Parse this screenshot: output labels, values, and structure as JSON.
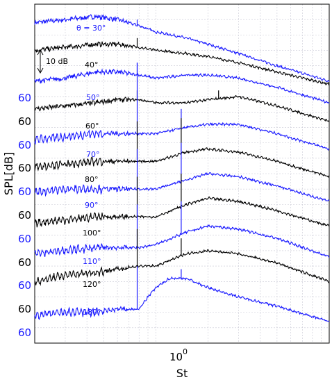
{
  "chart_data": {
    "type": "line",
    "xlabel": "St",
    "ylabel": "SPL[dB]",
    "x_scale": "log",
    "x_tick_labels": [
      {
        "base": "10",
        "exp": "0",
        "value": 1
      }
    ],
    "xlim": [
      0.2,
      10
    ],
    "y_tick_label": "60",
    "scale_annotation": "10 dB",
    "series": [
      {
        "name": "θ = 30°",
        "color": "#1a1aff",
        "x": [
          0.2,
          0.3,
          0.45,
          0.6,
          0.8,
          1.0,
          1.5,
          2.0,
          3.0,
          5.0,
          10.0
        ],
        "y": [
          94,
          95,
          96,
          95,
          93,
          91,
          89,
          87,
          84,
          80,
          75
        ],
        "peaks": [
          {
            "x": 0.78,
            "y": 95
          }
        ]
      },
      {
        "name": "40°",
        "color": "#000000",
        "x": [
          0.2,
          0.3,
          0.45,
          0.6,
          0.8,
          1.0,
          1.5,
          2.0,
          3.0,
          5.0,
          10.0
        ],
        "y": [
          85,
          86,
          87,
          87,
          86,
          85,
          84,
          83,
          81,
          78,
          74
        ],
        "peaks": [
          {
            "x": 0.78,
            "y": 89
          }
        ]
      },
      {
        "name": "50°",
        "color": "#1a1aff",
        "x": [
          0.2,
          0.3,
          0.45,
          0.6,
          0.8,
          1.0,
          1.5,
          2.0,
          3.0,
          5.0,
          10.0
        ],
        "y": [
          75,
          76,
          78,
          78,
          77,
          76,
          77,
          77,
          76,
          73,
          68
        ],
        "peaks": [
          {
            "x": 0.78,
            "y": 81
          }
        ]
      },
      {
        "name": "60°",
        "color": "#000000",
        "x": [
          0.2,
          0.3,
          0.45,
          0.6,
          0.8,
          1.0,
          1.5,
          2.0,
          3.0,
          5.0,
          10.0
        ],
        "y": [
          66,
          67,
          68,
          69,
          69,
          68,
          68,
          69,
          70,
          67,
          62
        ],
        "peaks": [
          {
            "x": 0.78,
            "y": 72
          },
          {
            "x": 2.3,
            "y": 72
          }
        ]
      },
      {
        "name": "70°",
        "color": "#1a1aff",
        "x": [
          0.2,
          0.3,
          0.45,
          0.6,
          0.8,
          1.0,
          1.5,
          2.0,
          3.0,
          5.0,
          10.0
        ],
        "y": [
          56,
          57,
          58,
          58,
          58,
          58,
          60,
          61,
          61,
          58,
          53
        ],
        "peaks": [
          {
            "x": 0.78,
            "y": 81
          },
          {
            "x": 1.4,
            "y": 66
          }
        ]
      },
      {
        "name": "80°",
        "color": "#000000",
        "x": [
          0.2,
          0.3,
          0.45,
          0.6,
          0.8,
          1.0,
          1.5,
          2.0,
          3.0,
          5.0,
          10.0
        ],
        "y": [
          47,
          48,
          49,
          49,
          49,
          49,
          52,
          53,
          52,
          49,
          44
        ],
        "peaks": [
          {
            "x": 0.78,
            "y": 62
          },
          {
            "x": 1.4,
            "y": 63
          }
        ]
      },
      {
        "name": "90°",
        "color": "#1a1aff",
        "x": [
          0.2,
          0.3,
          0.45,
          0.6,
          0.8,
          1.0,
          1.5,
          2.0,
          3.0,
          5.0,
          10.0
        ],
        "y": [
          39,
          40,
          40,
          40,
          40,
          40,
          43,
          45,
          44,
          41,
          36
        ],
        "peaks": [
          {
            "x": 0.78,
            "y": 53
          },
          {
            "x": 1.4,
            "y": 55
          }
        ]
      },
      {
        "name": "100°",
        "color": "#000000",
        "x": [
          0.2,
          0.3,
          0.45,
          0.6,
          0.8,
          1.0,
          1.5,
          2.0,
          3.0,
          5.0,
          10.0
        ],
        "y": [
          29,
          30,
          31,
          31,
          31,
          31,
          35,
          37,
          36,
          33,
          28
        ],
        "peaks": [
          {
            "x": 0.78,
            "y": 44
          },
          {
            "x": 1.4,
            "y": 45
          }
        ]
      },
      {
        "name": "110°",
        "color": "#1a1aff",
        "x": [
          0.2,
          0.3,
          0.45,
          0.6,
          0.8,
          1.0,
          1.5,
          2.0,
          3.0,
          5.0,
          10.0
        ],
        "y": [
          19,
          20,
          21,
          21,
          21,
          22,
          26,
          28,
          27,
          24,
          18
        ],
        "peaks": [
          {
            "x": 0.78,
            "y": 35
          },
          {
            "x": 1.4,
            "y": 36
          }
        ]
      },
      {
        "name": "120°",
        "color": "#000000",
        "x": [
          0.2,
          0.3,
          0.45,
          0.6,
          0.8,
          1.0,
          1.5,
          2.0,
          3.0,
          5.0,
          10.0
        ],
        "y": [
          10,
          12,
          13,
          14,
          15,
          15,
          19,
          20,
          19,
          16,
          10
        ],
        "peaks": [
          {
            "x": 0.78,
            "y": 27
          },
          {
            "x": 1.4,
            "y": 24
          }
        ]
      },
      {
        "name": "180°",
        "color": "#1a1aff",
        "x": [
          0.2,
          0.3,
          0.45,
          0.6,
          0.8,
          0.9,
          1.0,
          1.2,
          1.5,
          2.0,
          3.0,
          5.0,
          10.0
        ],
        "y": [
          -1,
          0,
          0,
          1,
          1,
          5,
          8,
          11,
          11,
          8,
          5,
          2,
          -3
        ],
        "peaks": [
          {
            "x": 0.78,
            "y": 15
          },
          {
            "x": 1.4,
            "y": 14
          }
        ]
      }
    ]
  }
}
